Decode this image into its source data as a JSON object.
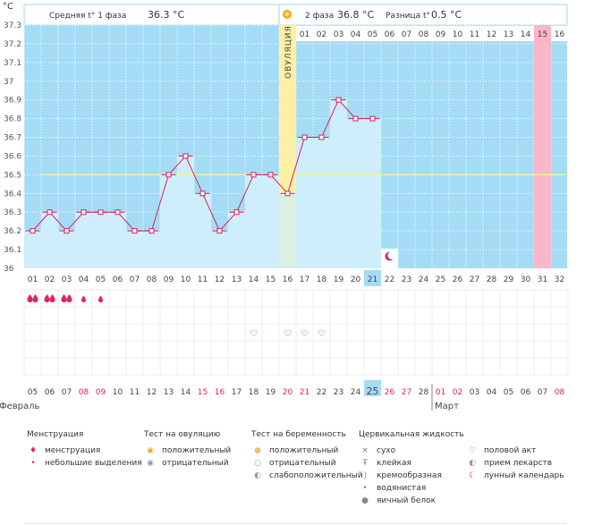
{
  "header": {
    "unit": "°C",
    "phase1_label": "Средняя t° 1 фаза",
    "phase1_value": "36.3 °C",
    "phase2_label": "2 фаза",
    "phase2_value": "36.8 °C",
    "diff_label": "Разница t°",
    "diff_value": "0.5 °C"
  },
  "ovulation_label": "ОВУЛЯЦИЯ",
  "colors": {
    "plot_bg": "#a5dcf5",
    "bar_fill": "#cfeefc",
    "line": "#d4215e",
    "ovulation": "#fff0a6",
    "predicted_period": "#f9b7c9",
    "coverline": "#f2f0a0",
    "highlight": "#a5dcf5"
  },
  "chart_data": {
    "type": "line",
    "title": "",
    "ylabel": "°C",
    "ylim": [
      36.0,
      37.3
    ],
    "yticks": [
      "37.3",
      "37.2",
      "37.1",
      "37",
      "36.9",
      "36.8",
      "36.7",
      "36.6",
      "36.5",
      "36.4",
      "36.3",
      "36.2",
      "36.1",
      "36"
    ],
    "cycle_days": [
      "01",
      "02",
      "03",
      "04",
      "05",
      "06",
      "07",
      "08",
      "09",
      "10",
      "11",
      "12",
      "13",
      "14",
      "15",
      "16",
      "17",
      "18",
      "19",
      "20",
      "21",
      "22",
      "23",
      "24",
      "25",
      "26",
      "27",
      "28",
      "29",
      "30",
      "31",
      "32"
    ],
    "temperatures": [
      36.2,
      36.3,
      36.2,
      36.3,
      36.3,
      36.3,
      36.2,
      36.2,
      36.5,
      36.6,
      36.4,
      36.2,
      36.3,
      36.5,
      36.5,
      36.4,
      36.7,
      36.7,
      36.9,
      36.8,
      36.8
    ],
    "coverline": 36.5,
    "ovulation_day": 16,
    "highlighted_day": 21,
    "predicted_period_day": 31,
    "post_ovulation_top_labels": [
      "01",
      "02",
      "03",
      "04",
      "05",
      "06",
      "07",
      "08",
      "09",
      "10",
      "11",
      "12",
      "13",
      "14",
      "15",
      "16"
    ],
    "calendar_dates": [
      "05",
      "06",
      "07",
      "08",
      "09",
      "10",
      "11",
      "12",
      "13",
      "14",
      "15",
      "16",
      "17",
      "18",
      "19",
      "20",
      "21",
      "22",
      "23",
      "24",
      "25",
      "26",
      "27",
      "28",
      "01",
      "02",
      "03",
      "04",
      "05",
      "06",
      "07",
      "08"
    ],
    "calendar_red_dates": [
      3,
      4,
      10,
      11,
      15,
      16,
      21,
      22,
      24,
      25,
      31
    ],
    "month_labels": [
      "Февраль",
      "Март"
    ],
    "month_split_after_day": 24,
    "menstruation_days": [
      1,
      2,
      3,
      4,
      5
    ],
    "menstruation_heavy_days": [
      1,
      2,
      3
    ],
    "intercourse_days": [
      14,
      16,
      17,
      18
    ],
    "moon_day": 22
  },
  "legend": {
    "columns": [
      {
        "header": "Менструация",
        "items": [
          {
            "icon": "drop-heavy-icon",
            "label": "менструация"
          },
          {
            "icon": "drop-small-icon",
            "label": "небольшие выделения"
          }
        ]
      },
      {
        "header": "Тест на овуляцию",
        "items": [
          {
            "icon": "sun-positive-icon",
            "label": "положительный"
          },
          {
            "icon": "sun-negative-icon",
            "label": "отрицательный"
          }
        ]
      },
      {
        "header": "Тест на беременность",
        "items": [
          {
            "icon": "test-positive-icon",
            "label": "положительный"
          },
          {
            "icon": "test-negative-icon",
            "label": "отрицательный"
          },
          {
            "icon": "test-weak-icon",
            "label": "слабоположительный"
          }
        ]
      },
      {
        "header": "Цервикальная жидкость",
        "items": [
          {
            "icon": "cross-icon",
            "label": "сухо"
          },
          {
            "icon": "sticky-icon",
            "label": "клейкая"
          },
          {
            "icon": "creamy-icon",
            "label": "кремообразная"
          },
          {
            "icon": "watery-icon",
            "label": "водянистая"
          },
          {
            "icon": "eggwhite-icon",
            "label": "яичный белок"
          }
        ]
      },
      {
        "header": "",
        "items": [
          {
            "icon": "heart-icon",
            "label": "половой акт"
          },
          {
            "icon": "pill-icon",
            "label": "прием лекарств"
          },
          {
            "icon": "moon-icon",
            "label": "лунный календарь"
          }
        ]
      }
    ]
  }
}
